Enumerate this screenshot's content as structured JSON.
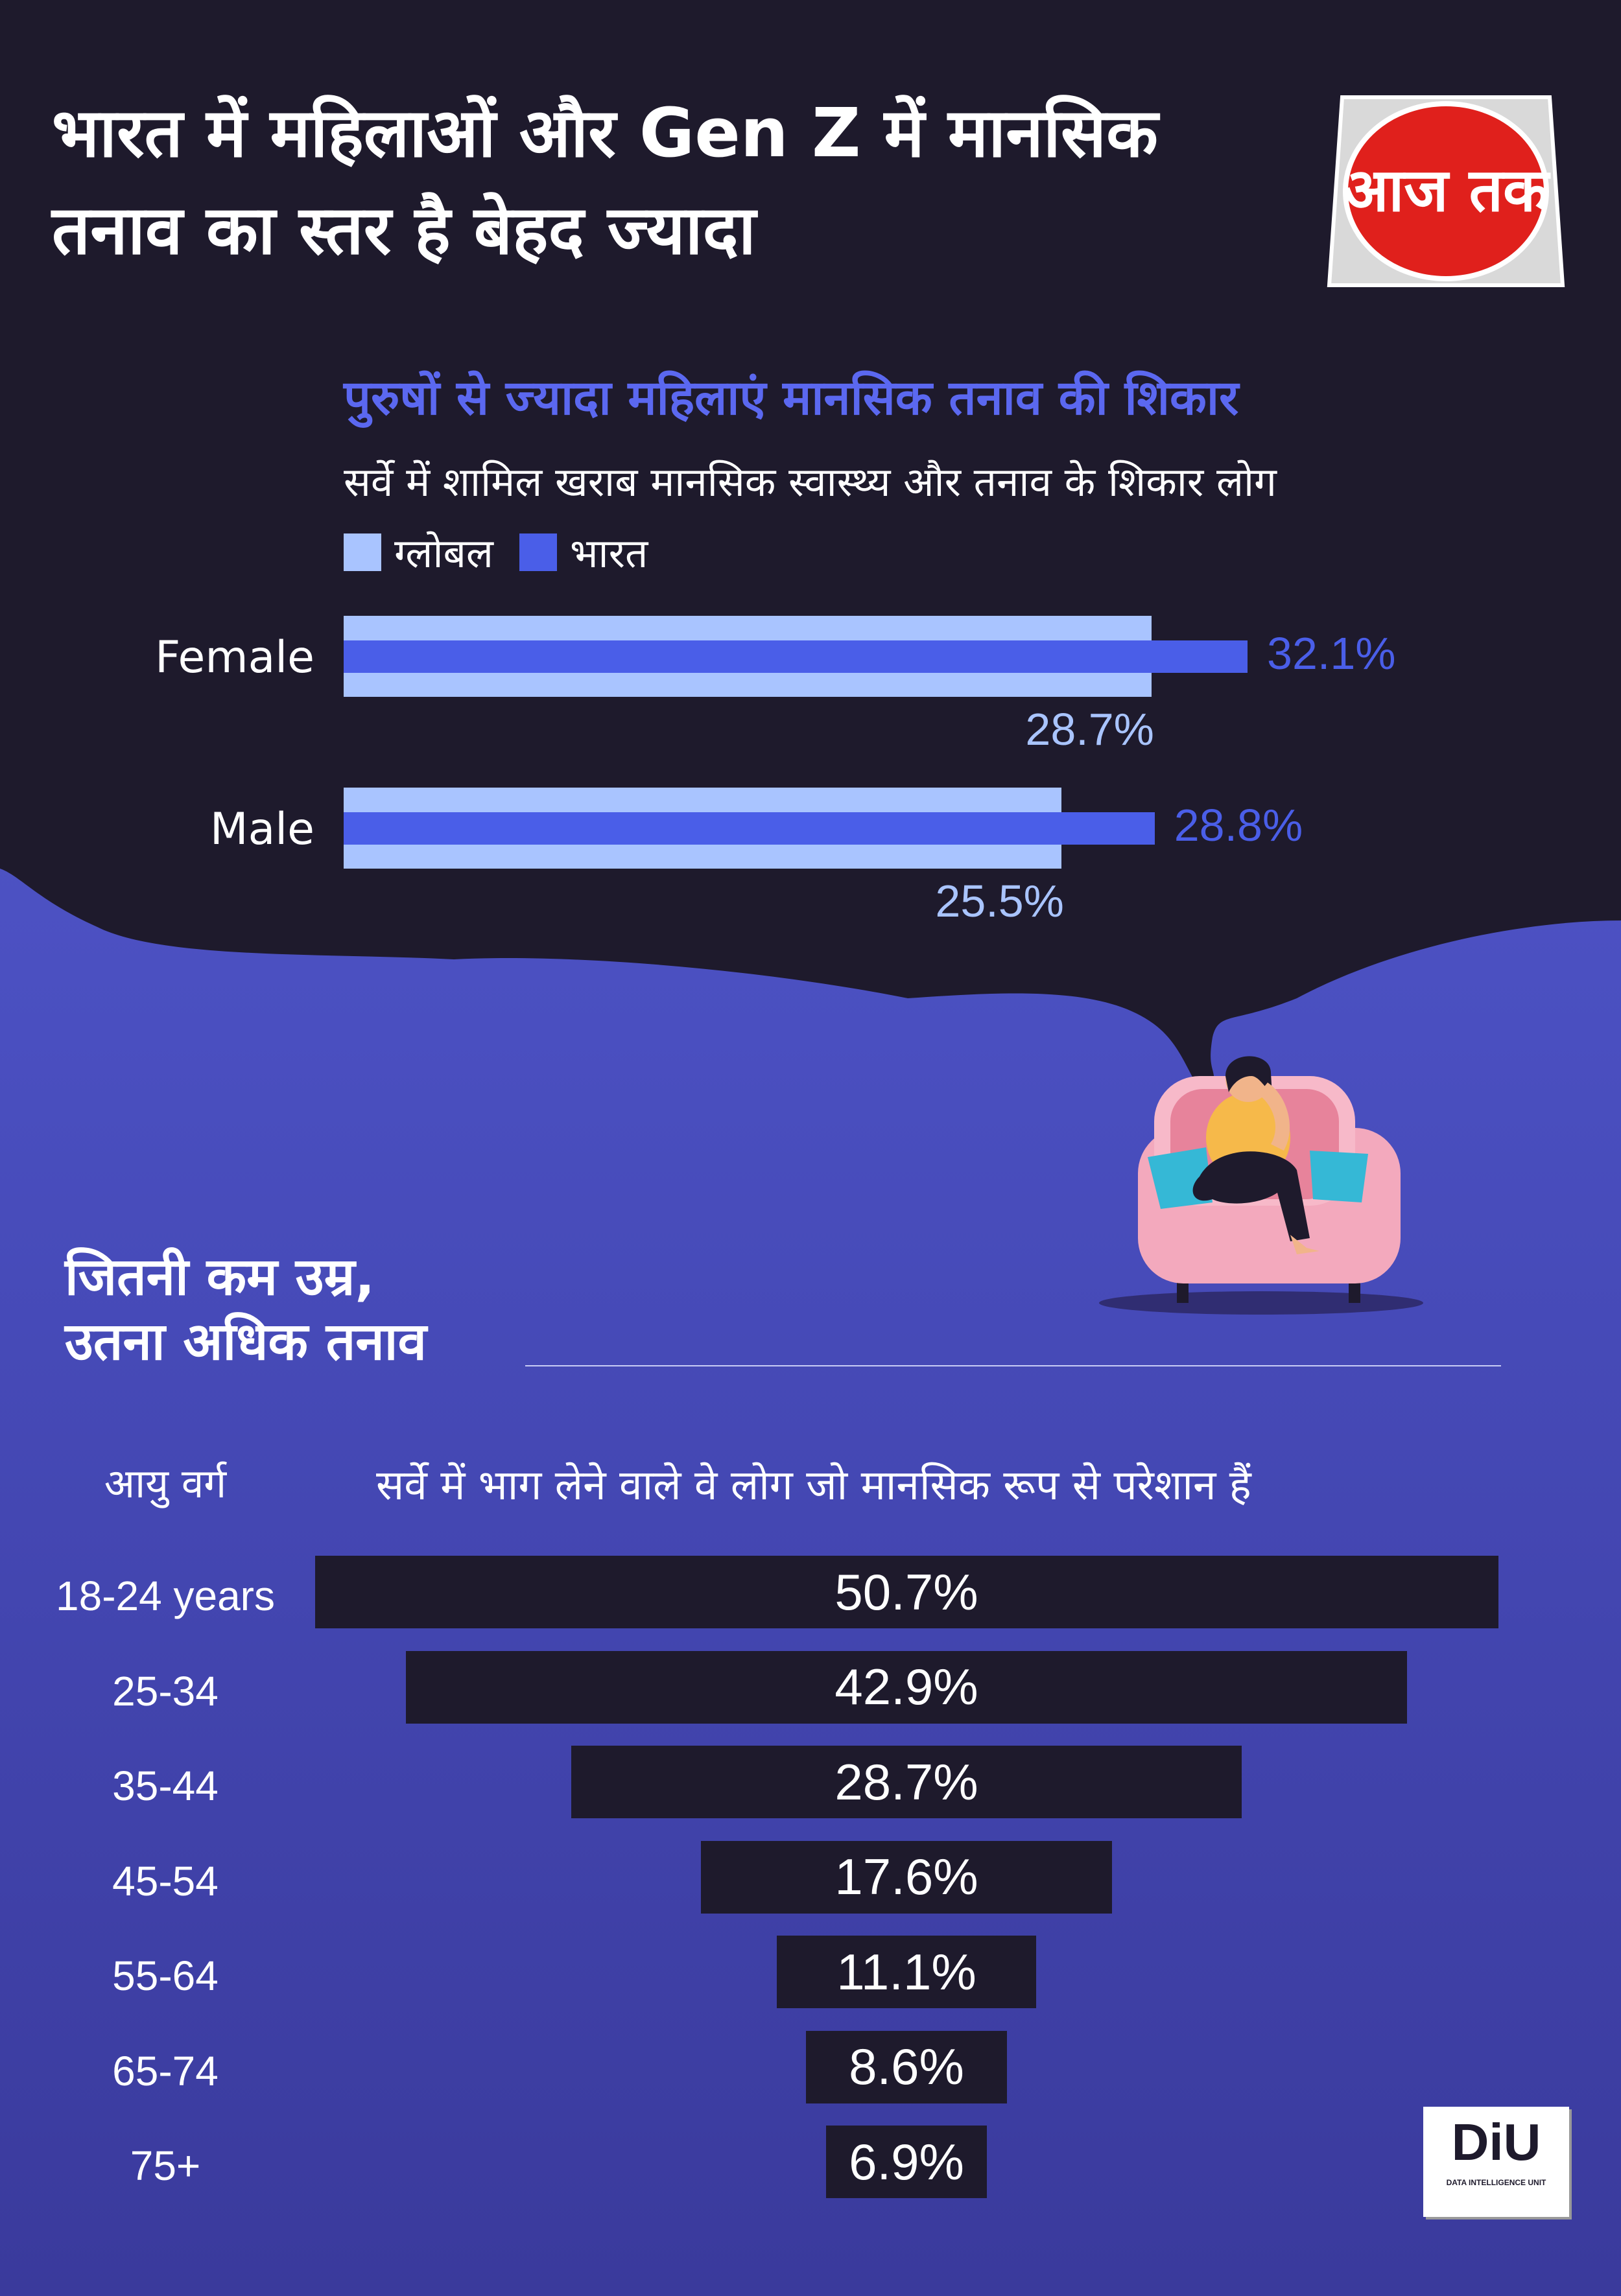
{
  "header": {
    "title": "भारत में महिलाओं और Gen Z में मानसिक तनाव का स्तर है बेहद ज्यादा",
    "logo_text": "आज तक"
  },
  "section1": {
    "heading": "पुरुषों से ज्यादा महिलाएं मानसिक तनाव की शिकार",
    "subheading": "सर्वे में शामिल खराब मानसिक स्वास्थ्य और तनाव के शिकार लोग"
  },
  "section2": {
    "heading_line1": "जितनी कम उम्र,",
    "heading_line2": "उतना अधिक तनाव",
    "col_age": "आयु वर्ग",
    "col_desc": "सर्वे में भाग लेने वाले वे लोग जो मानसिक रूप से परेशान हैं"
  },
  "colors": {
    "global": "#a9c4ff",
    "india": "#4a5ee8",
    "dark_bar": "#1e1a2c",
    "background_dark": "#1e1a2c",
    "background_blue": "#4f55c8",
    "logo_red": "#e0201c"
  },
  "footer": {
    "logo_text": "DiU",
    "logo_caption": "DATA INTELLIGENCE UNIT"
  },
  "chart_data": [
    {
      "type": "bar",
      "orientation": "horizontal",
      "title": "पुरुषों से ज्यादा महिलाएं मानसिक तनाव की शिकार",
      "subtitle": "सर्वे में शामिल खराब मानसिक स्वास्थ्य और तनाव के शिकार लोग",
      "categories": [
        "Female",
        "Male"
      ],
      "series": [
        {
          "name": "ग्लोबल",
          "values": [
            28.7,
            25.5
          ],
          "labels": [
            "28.7%",
            "25.5%"
          ]
        },
        {
          "name": "भारत",
          "values": [
            32.1,
            28.8
          ],
          "labels": [
            "32.1%",
            "28.8%"
          ]
        }
      ],
      "legend": "top-left",
      "grid": false
    },
    {
      "type": "bar",
      "orientation": "horizontal-centered",
      "title": "जितनी कम उम्र, उतना अधिक तनाव",
      "xlabel": "सर्वे में भाग लेने वाले वे लोग जो मानसिक रूप से परेशान हैं",
      "ylabel": "आयु वर्ग",
      "categories": [
        "18-24 years",
        "25-34",
        "35-44",
        "45-54",
        "55-64",
        "65-74",
        "75+"
      ],
      "values": [
        50.7,
        42.9,
        28.7,
        17.6,
        11.1,
        8.6,
        6.9
      ],
      "labels": [
        "50.7%",
        "42.9%",
        "28.7%",
        "17.6%",
        "11.1%",
        "8.6%",
        "6.9%"
      ],
      "grid": false
    }
  ]
}
